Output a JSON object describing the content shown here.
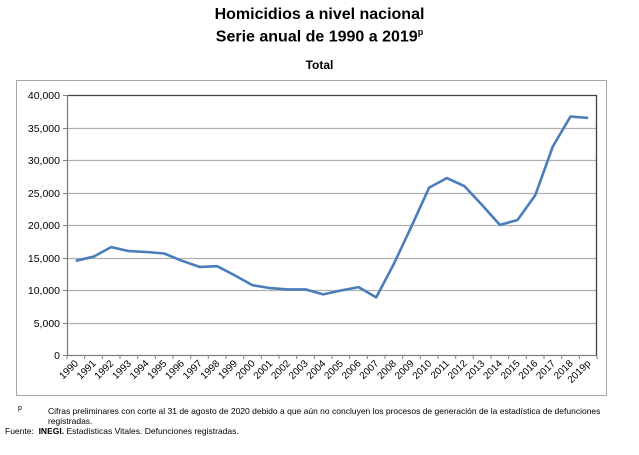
{
  "header": {
    "title": "Homicidios a nivel nacional",
    "subtitle_main": "Serie anual de 1990 a 2019",
    "subtitle_sup": "p"
  },
  "chart_data": {
    "type": "line",
    "title": "Total",
    "xlabel": "",
    "ylabel": "",
    "ylim": [
      0,
      40000
    ],
    "yticks": [
      0,
      5000,
      10000,
      15000,
      20000,
      25000,
      30000,
      35000,
      40000
    ],
    "ytick_labels": [
      "0",
      "5,000",
      "10,000",
      "15,000",
      "20,000",
      "25,000",
      "30,000",
      "35,000",
      "40,000"
    ],
    "grid": true,
    "line_color": "#4a7ebb",
    "categories": [
      "1990",
      "1991",
      "1992",
      "1993",
      "1994",
      "1995",
      "1996",
      "1997",
      "1998",
      "1999",
      "2000",
      "2001",
      "2002",
      "2003",
      "2004",
      "2005",
      "2006",
      "2007",
      "2008",
      "2009",
      "2010",
      "2011",
      "2012",
      "2013",
      "2014",
      "2015",
      "2016",
      "2017",
      "2018",
      "2019p"
    ],
    "values": [
      14493,
      15125,
      16594,
      15981,
      15839,
      15612,
      14505,
      13552,
      13656,
      12249,
      10737,
      10285,
      10088,
      10087,
      9329,
      9921,
      10452,
      8867,
      14006,
      19803,
      25757,
      27213,
      25967,
      23063,
      20010,
      20762,
      24559,
      32079,
      36685,
      36476
    ]
  },
  "footnotes": {
    "p_marker": "p",
    "p_text_1": "Cifras preliminares con corte al 31 de agosto de 2020 debido a que aún no concluyen los procesos de generación de la estadística de defunciones",
    "p_text_2": "registradas.",
    "source_label": "Fuente:",
    "source_org": "INEGI.",
    "source_text": "Estadísticas Vitales. Defunciones registradas."
  }
}
